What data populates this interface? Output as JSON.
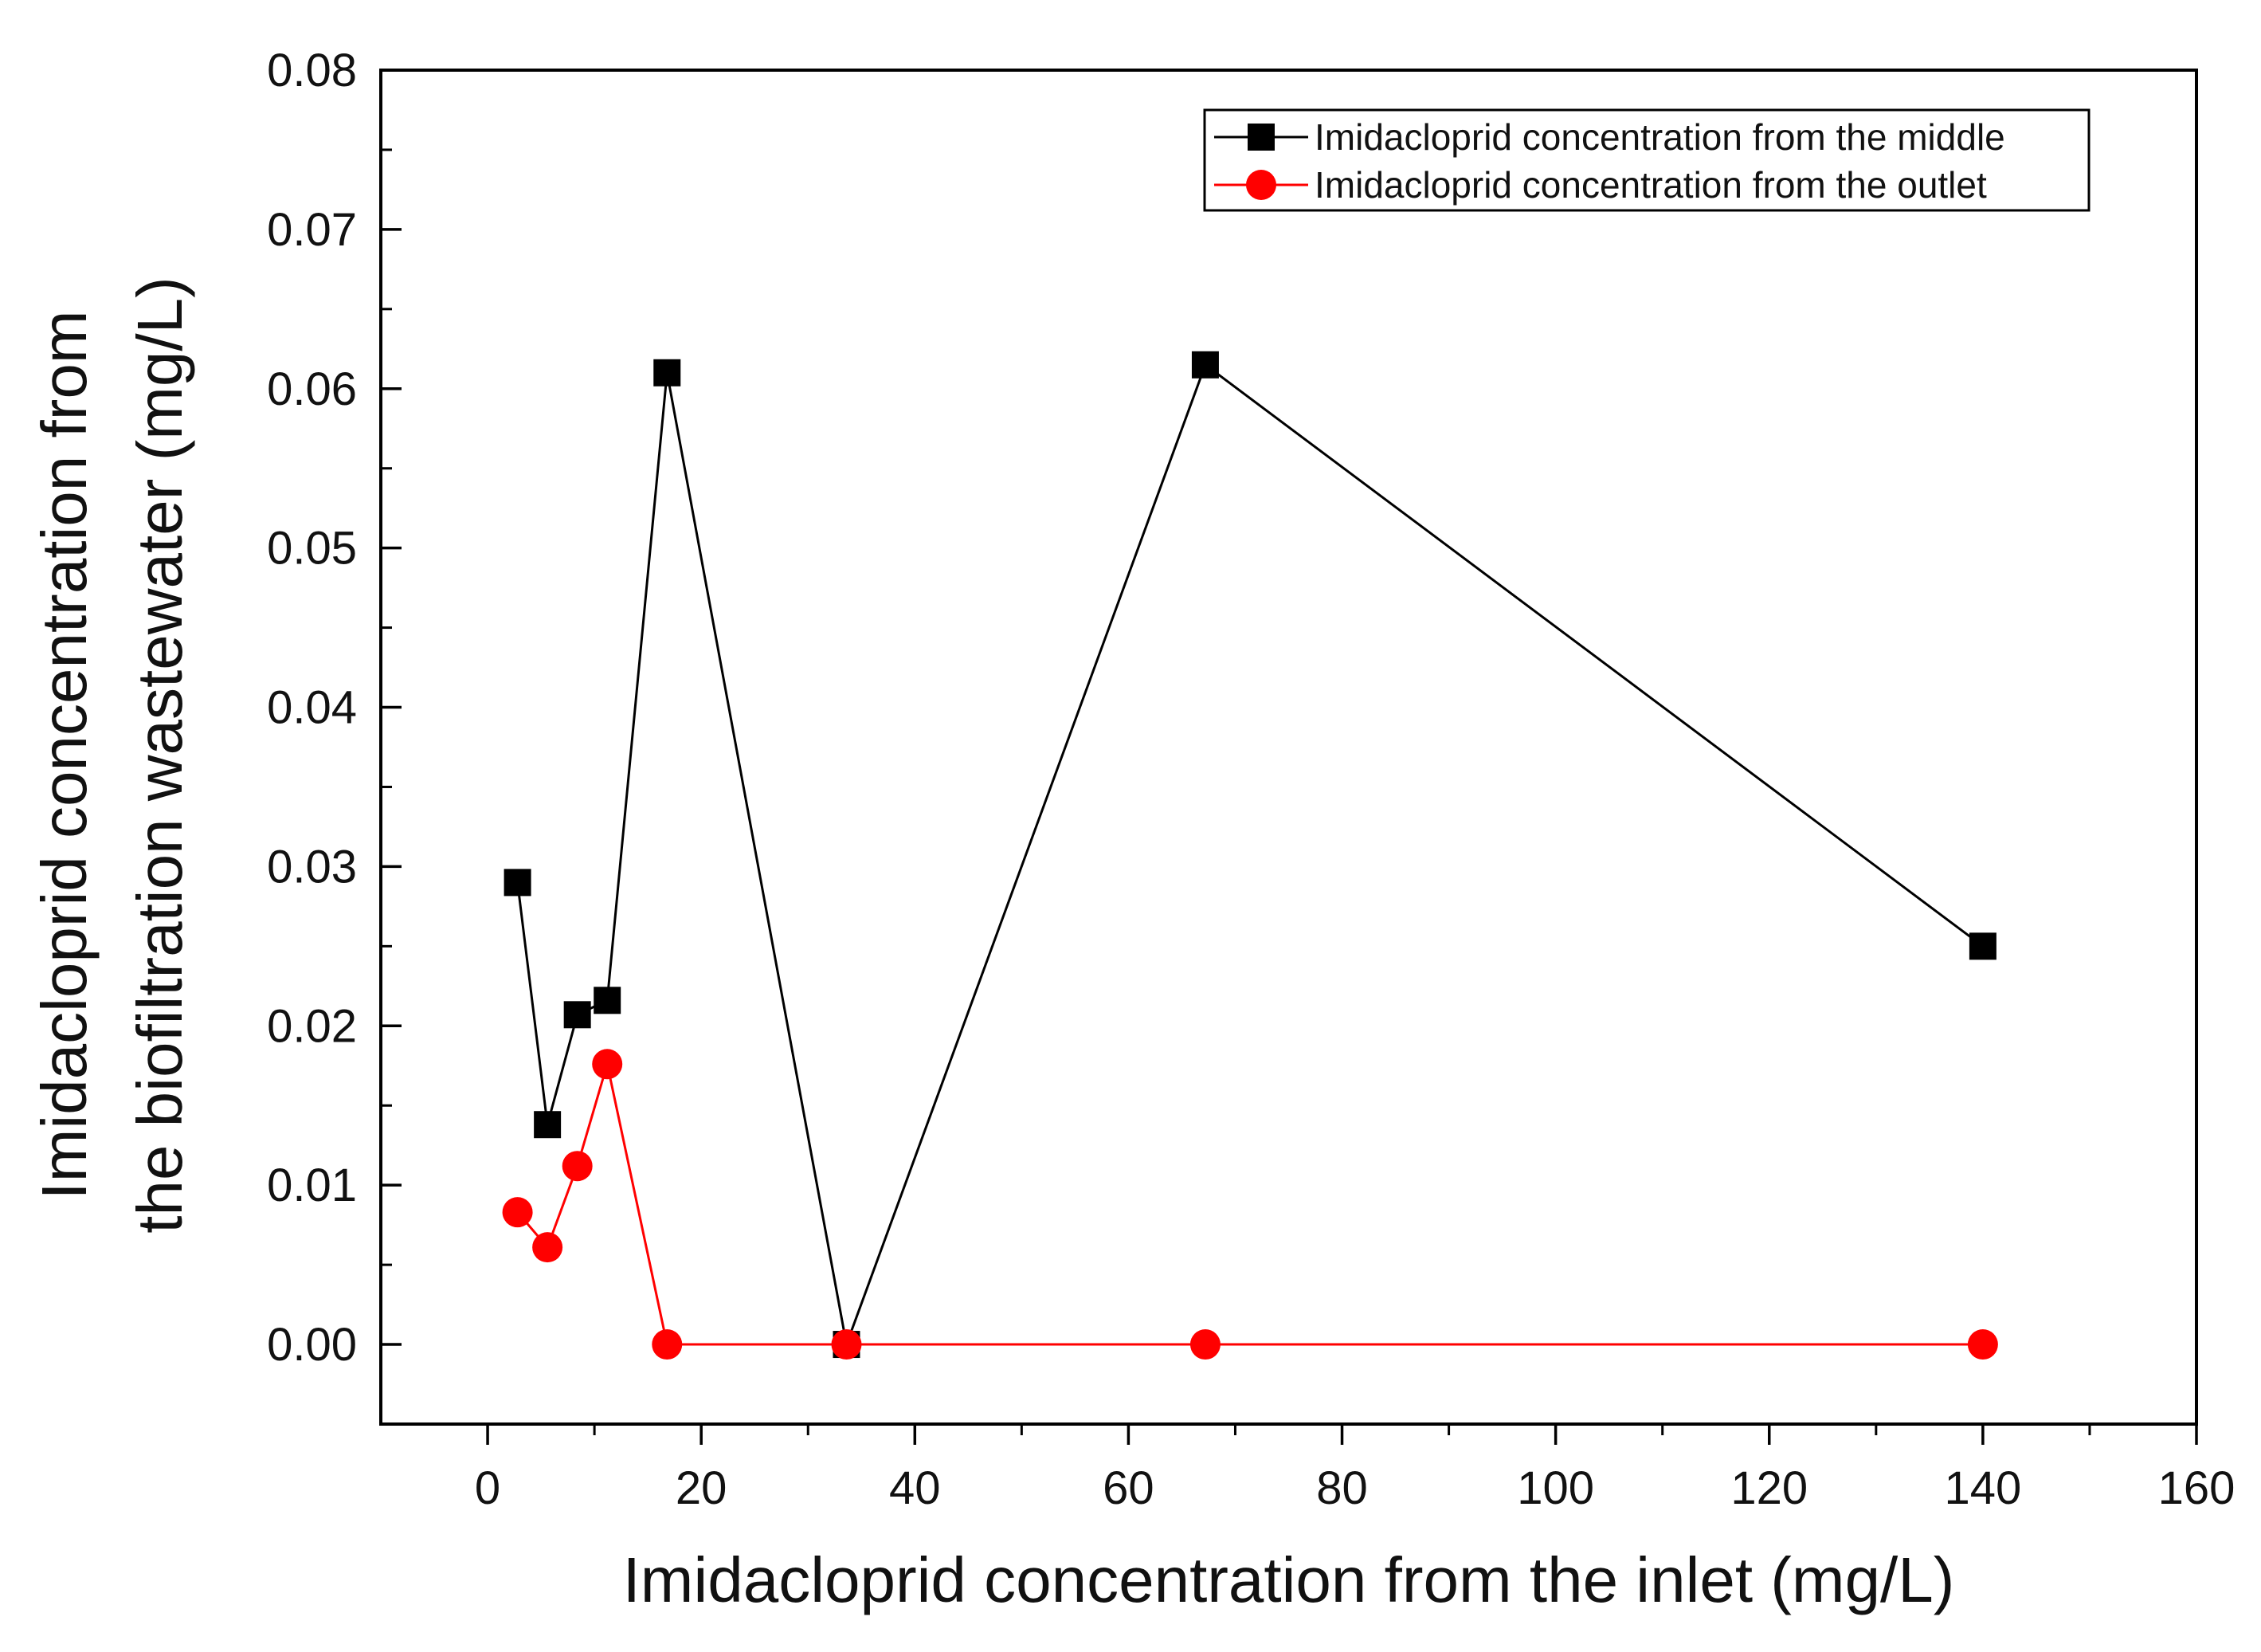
{
  "chart_data": {
    "type": "line",
    "title": "",
    "xlabel": "Imidacloprid concentration from the inlet (mg/L)",
    "ylabel_lines": [
      "Imidacloprid concentration from",
      "the biofiltration wastewater (mg/L)"
    ],
    "xlim": [
      -10,
      160
    ],
    "ylim": [
      -0.005,
      0.08
    ],
    "xticks": [
      0,
      20,
      40,
      60,
      80,
      100,
      120,
      140,
      160
    ],
    "xtick_labels": [
      "0",
      "20",
      "40",
      "60",
      "80",
      "100",
      "120",
      "140",
      "160"
    ],
    "yticks": [
      0.0,
      0.01,
      0.02,
      0.03,
      0.04,
      0.05,
      0.06,
      0.07,
      0.08
    ],
    "ytick_labels": [
      "0.00",
      "0.01",
      "0.02",
      "0.03",
      "0.04",
      "0.05",
      "0.06",
      "0.07",
      "0.08"
    ],
    "grid": false,
    "legend_position": "top-right",
    "series": [
      {
        "name": "Imidacloprid concentration from the middle",
        "color": "#000000",
        "marker": "square",
        "x": [
          2.8,
          5.6,
          8.4,
          11.2,
          16.8,
          33.6,
          67.2,
          140
        ],
        "y": [
          0.029,
          0.0138,
          0.0207,
          0.0216,
          0.061,
          0.0,
          0.0615,
          0.025
        ]
      },
      {
        "name": "Imidacloprid concentration from the outlet",
        "color": "#ff0000",
        "marker": "circle",
        "x": [
          2.8,
          5.6,
          8.4,
          11.2,
          16.8,
          33.6,
          67.2,
          140
        ],
        "y": [
          0.0083,
          0.0061,
          0.0112,
          0.0176,
          0.0,
          0.0,
          0.0,
          0.0
        ]
      }
    ]
  }
}
